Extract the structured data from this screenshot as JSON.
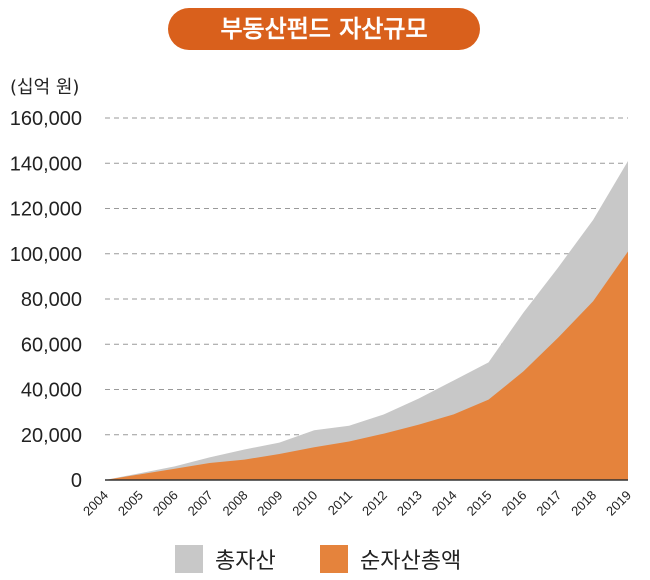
{
  "chart_data": {
    "type": "area",
    "title": "부동산펀드 자산규모",
    "unit_label": "(십억 원)",
    "categories": [
      "2004",
      "2005",
      "2006",
      "2007",
      "2008",
      "2009",
      "2010",
      "2011",
      "2012",
      "2013",
      "2014",
      "2015",
      "2016",
      "2017",
      "2018",
      "2019"
    ],
    "series": [
      {
        "name": "총자산",
        "color": "#c8c8c8",
        "values": [
          0,
          3000,
          6000,
          10000,
          13500,
          16500,
          22000,
          24000,
          29000,
          36000,
          44000,
          52000,
          74000,
          94000,
          115000,
          141000
        ]
      },
      {
        "name": "순자산총액",
        "color": "#e5833c",
        "values": [
          0,
          2500,
          5000,
          7500,
          9000,
          11500,
          14500,
          17000,
          20500,
          24500,
          29000,
          35500,
          48000,
          63000,
          79000,
          101000
        ]
      }
    ],
    "ylim": [
      0,
      160000
    ],
    "yticks": [
      "0",
      "20,000",
      "40,000",
      "60,000",
      "80,000",
      "100,000",
      "120,000",
      "140,000",
      "160,000"
    ],
    "grid": true,
    "legend_position": "bottom"
  }
}
